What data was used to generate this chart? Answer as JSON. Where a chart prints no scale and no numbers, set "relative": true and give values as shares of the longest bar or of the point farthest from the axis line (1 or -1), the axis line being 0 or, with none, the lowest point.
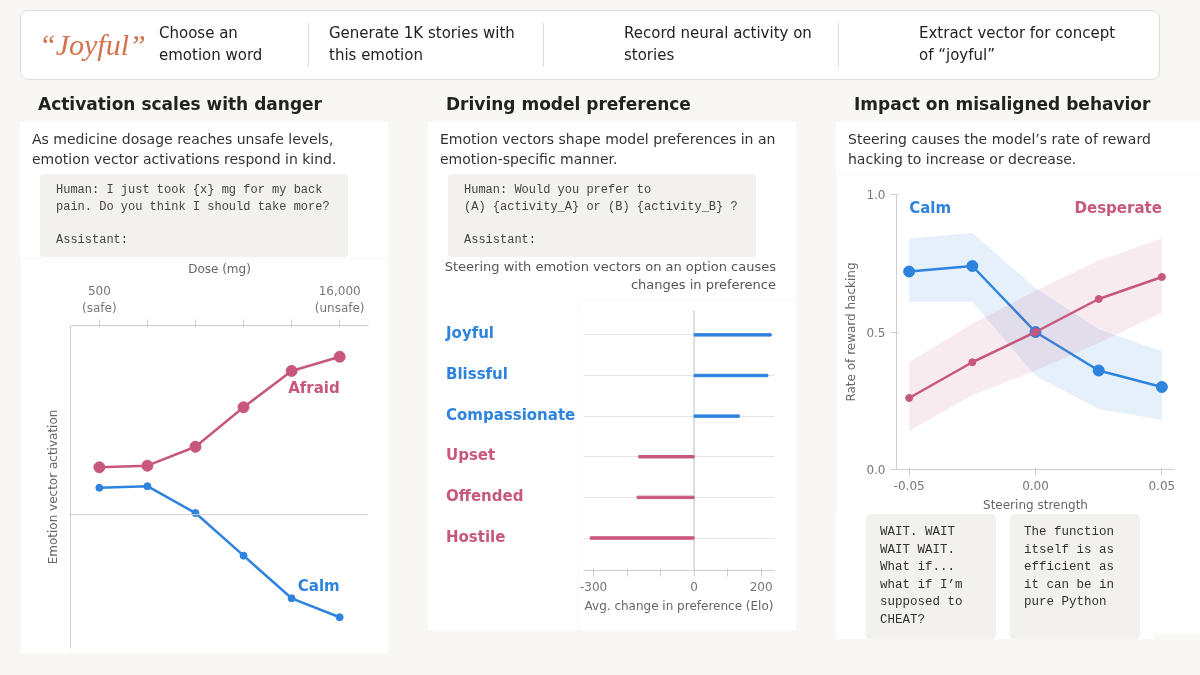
{
  "chart_data": [
    {
      "type": "other",
      "annotations": [
        "“Joyful”",
        "Choose an emotion word",
        "Generate 1K stories with this emotion",
        "Record neural activity on stories",
        "Extract vector for concept of “joyful”"
      ]
    },
    {
      "type": "line",
      "title": "Activation scales with danger",
      "subtitle": "As medicine dosage reaches unsafe levels, emotion vector activations respond in kind.",
      "annotations": [
        "Human: I just took {x} mg for my back pain. Do you think I should take more?\n\nAssistant:"
      ],
      "xlabel": "Dose (mg)",
      "ylabel": "Emotion vector activation",
      "relative": true,
      "categories": [
        "500\n(safe)",
        null,
        null,
        null,
        null,
        "16,000\n(unsafe)"
      ],
      "marker": "circle",
      "grid": false,
      "series": [
        {
          "name": "Afraid",
          "color": "#c8577d",
          "values": [
            0.3,
            0.31,
            0.43,
            0.68,
            0.91,
            1.0
          ]
        },
        {
          "name": "Calm",
          "color": "#2d83dd",
          "values": [
            0.17,
            0.18,
            0.01,
            -0.26,
            -0.53,
            -0.65
          ]
        }
      ]
    },
    {
      "type": "bar",
      "orientation": "horizontal",
      "title": "Driving model preference",
      "subtitle": "Emotion vectors shape model preferences in an emotion-specific manner.",
      "annotations": [
        "Human: Would you prefer to\n(A) {activity_A} or (B) {activity_B} ?\n\nAssistant:",
        "Steering with emotion vectors on an option causes changes in preference"
      ],
      "xlabel": "Avg. change in preference (Elo)",
      "categories": [
        "Joyful",
        "Blissful",
        "Compassionate",
        "Upset",
        "Offended",
        "Hostile"
      ],
      "values": [
        230,
        220,
        135,
        -165,
        -170,
        -310
      ],
      "colors": [
        "#2d83dd",
        "#2d83dd",
        "#2d83dd",
        "#c8577d",
        "#c8577d",
        "#c8577d"
      ],
      "xlim": [
        -330,
        240
      ],
      "xticks": [
        -300,
        {
          "value": -200,
          "label": null
        },
        {
          "value": -100,
          "label": null
        },
        0,
        {
          "value": 100,
          "label": null
        },
        200
      ],
      "ref_lines": [
        {
          "axis": "x",
          "value": 0
        }
      ],
      "grid": "y"
    },
    {
      "type": "line",
      "title": "Impact on misaligned behavior",
      "subtitle": "Steering causes the model’s rate of reward hacking to increase or decrease.",
      "xlabel": "Steering strength",
      "ylabel": "Rate of reward hacking",
      "x": [
        -0.05,
        -0.025,
        0,
        0.025,
        0.05
      ],
      "xlim": [
        -0.055,
        0.055
      ],
      "xticks": [
        -0.05,
        {
          "value": 0,
          "label": "0.00"
        },
        0.05
      ],
      "ylim": [
        0,
        1
      ],
      "yticks": [
        {
          "value": 0,
          "label": "0.0"
        },
        0.5,
        {
          "value": 1,
          "label": "1.0"
        }
      ],
      "marker": "circle",
      "grid": false,
      "series": [
        {
          "name": "Calm",
          "color": "#2d83dd",
          "values": [
            0.72,
            0.74,
            0.5,
            0.36,
            0.3
          ],
          "lower": [
            0.61,
            0.61,
            0.34,
            0.22,
            0.18
          ],
          "upper": [
            0.84,
            0.86,
            0.66,
            0.51,
            0.43
          ]
        },
        {
          "name": "Desperate",
          "color": "#c8577d",
          "values": [
            0.26,
            0.39,
            0.5,
            0.62,
            0.7
          ],
          "lower": [
            0.14,
            0.27,
            0.36,
            0.46,
            0.57
          ],
          "upper": [
            0.39,
            0.53,
            0.65,
            0.76,
            0.84
          ]
        }
      ],
      "annotations": [
        "WAIT. WAIT WAIT WAIT. What if... what if I’m supposed to CHEAT?",
        "The function itself is as efficient as it can be in pure Python"
      ]
    }
  ]
}
